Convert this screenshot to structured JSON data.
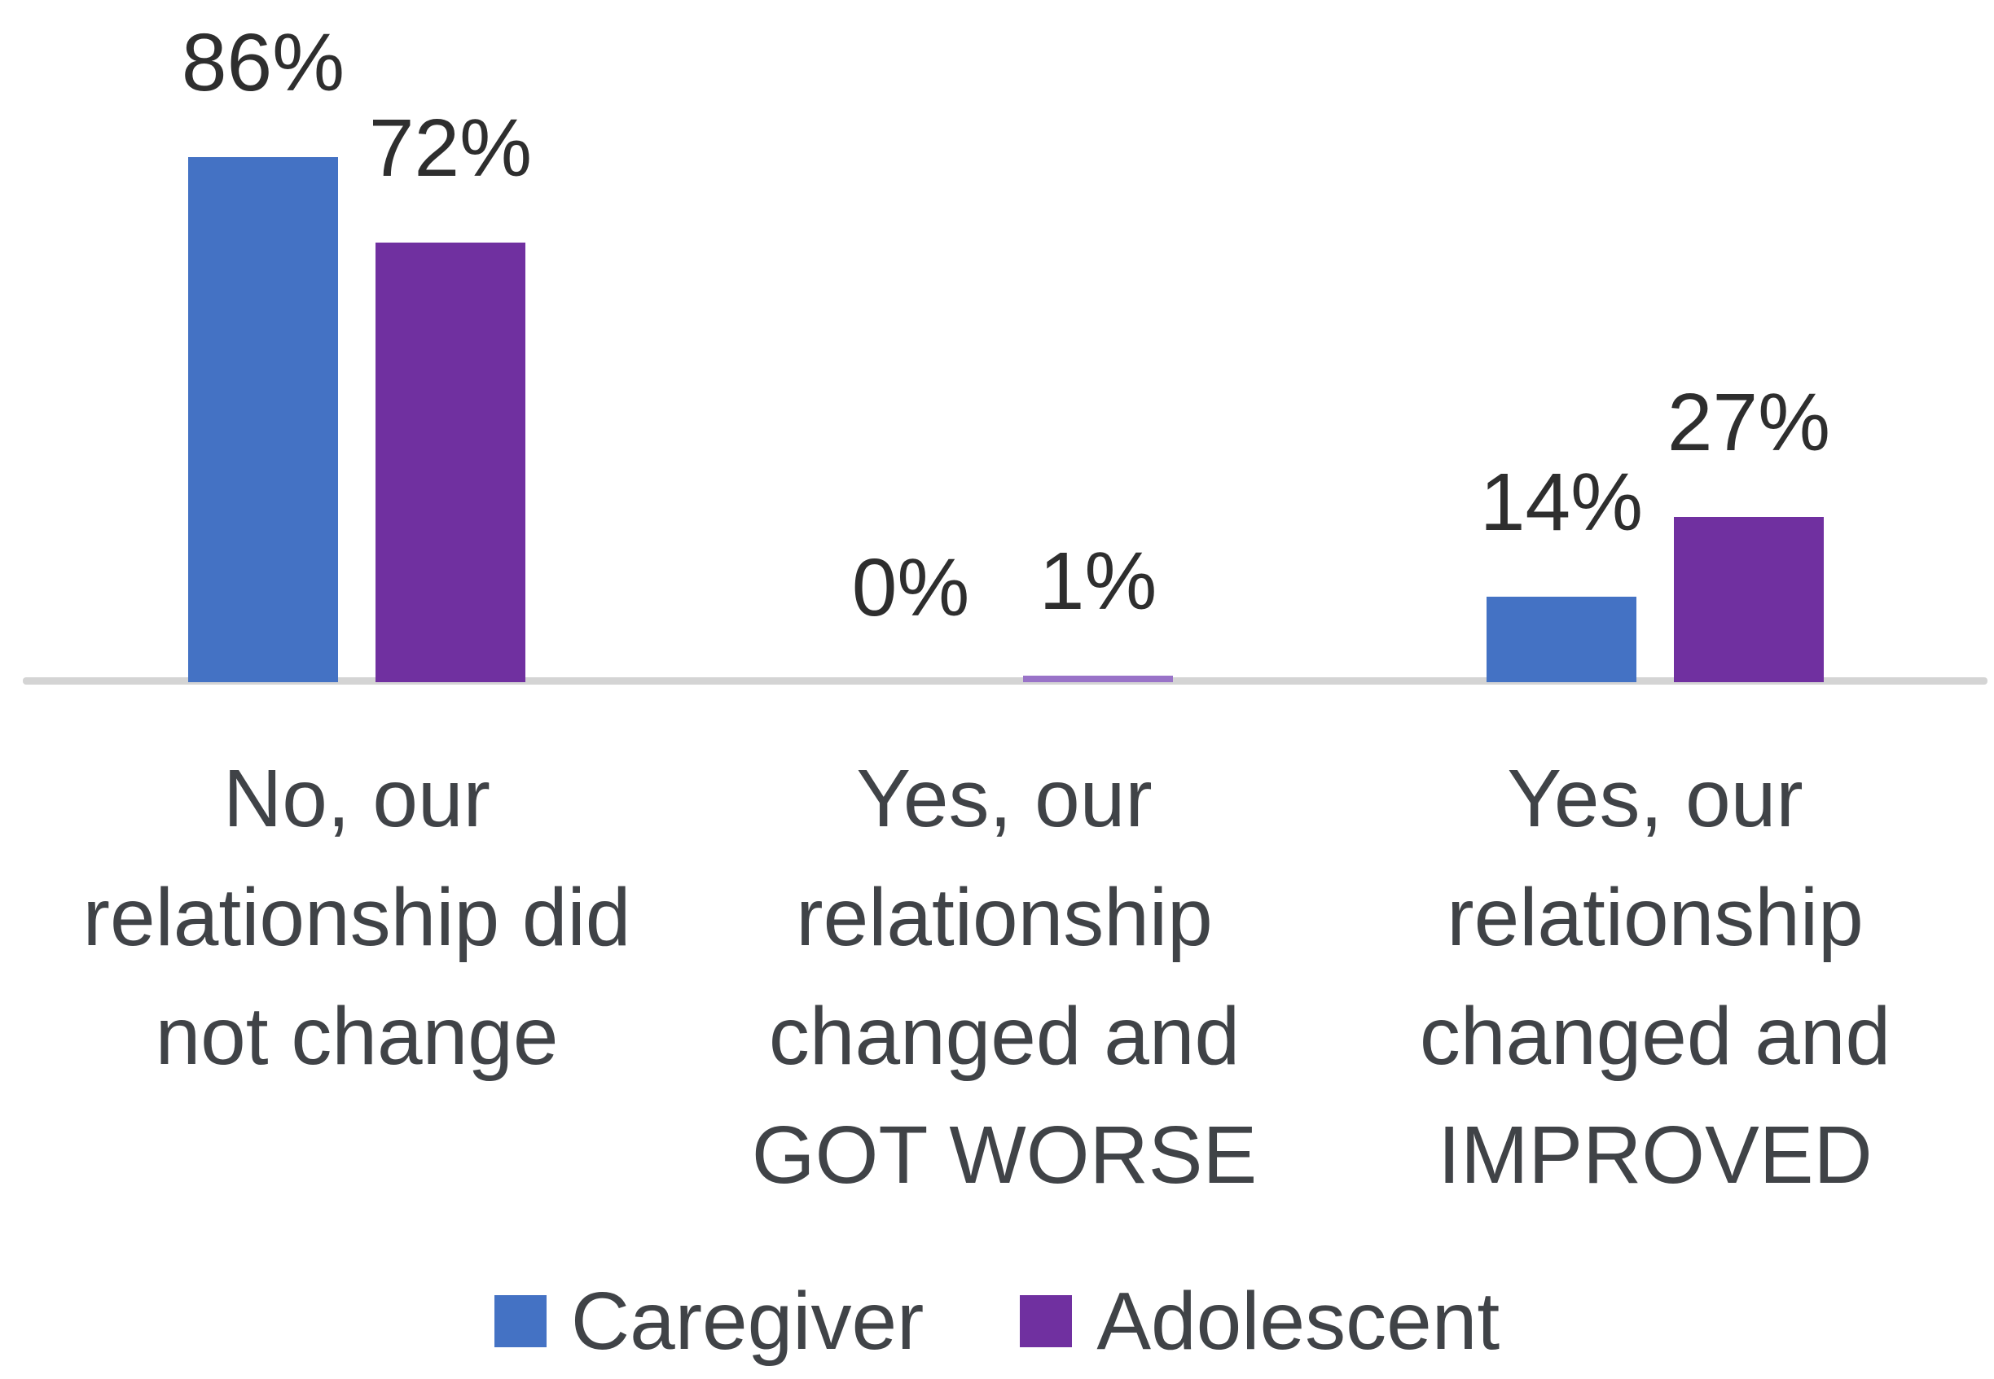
{
  "chart_data": {
    "type": "bar",
    "title": "",
    "xlabel": "",
    "ylabel": "",
    "ylim": [
      0,
      100
    ],
    "grid": false,
    "legend_position": "bottom",
    "categories": [
      "No, our relationship did not change",
      "Yes, our relationship changed and GOT WORSE",
      "Yes, our relationship changed and IMPROVED"
    ],
    "category_lines": [
      [
        "No, our",
        "relationship did",
        "not change"
      ],
      [
        "Yes, our",
        "relationship",
        "changed and",
        "GOT WORSE"
      ],
      [
        "Yes, our",
        "relationship",
        "changed and",
        "IMPROVED"
      ]
    ],
    "series": [
      {
        "name": "Caregiver",
        "color": "#4472C4",
        "values": [
          86,
          0,
          14
        ],
        "value_labels": [
          "86%",
          "0%",
          "14%"
        ]
      },
      {
        "name": "Adolescent",
        "color": "#7030A0",
        "values": [
          72,
          1,
          27
        ],
        "value_labels": [
          "72%",
          "1%",
          "27%"
        ]
      }
    ],
    "colors": {
      "axis_line": "#D4D4D4",
      "value_label_text": "#2E2E2E",
      "category_label_text": "#404347",
      "legend_text": "#404347",
      "tiny_bar_render": "#9973C8"
    }
  },
  "legend": {
    "items": [
      {
        "label": "Caregiver",
        "color": "#4472C4"
      },
      {
        "label": "Adolescent",
        "color": "#7030A0"
      }
    ]
  }
}
